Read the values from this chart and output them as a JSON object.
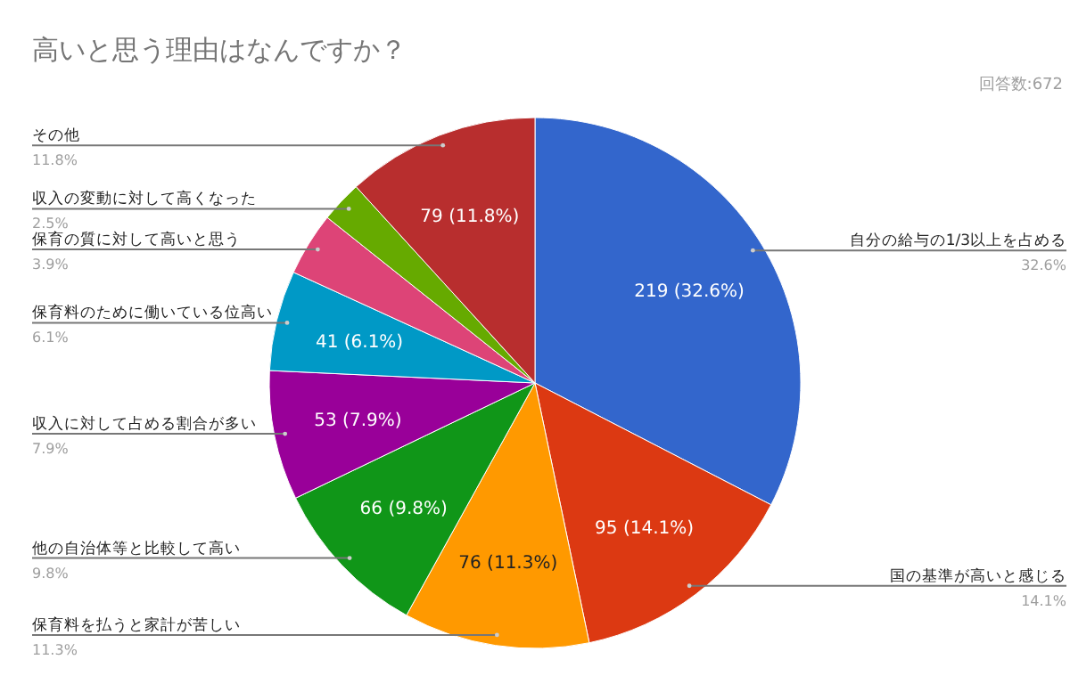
{
  "chart_data": {
    "type": "pie",
    "title": "高いと思う理由はなんですか？",
    "subtitle": "回答数:672",
    "categories": [
      "自分の給与の1/3以上を占める",
      "国の基準が高いと感じる",
      "保育料を払うと家計が苦しい",
      "他の自治体等と比較して高い",
      "収入に対して占める割合が多い",
      "保育料のために働いている位高い",
      "保育の質に対して高いと思う",
      "収入の変動に対して高くなった",
      "その他"
    ],
    "values": [
      219,
      95,
      76,
      66,
      53,
      41,
      26,
      17,
      79
    ],
    "colors": [
      "#3366cc",
      "#dc3912",
      "#ff9900",
      "#109618",
      "#990099",
      "#0099c6",
      "#dd4477",
      "#66aa00",
      "#b82e2e"
    ],
    "value_labels": [
      "219 (32.6%)",
      "95 (14.1%)",
      "76 (11.3%)",
      "66 (9.8%)",
      "53 (7.9%)",
      "41 (6.1%)",
      null,
      null,
      "79 (11.8%)"
    ],
    "annotations": [
      "32.6%",
      "14.1%",
      "11.3%",
      "9.8%",
      "7.9%",
      "6.1%",
      "3.9%",
      "2.5%",
      "11.8%"
    ]
  }
}
